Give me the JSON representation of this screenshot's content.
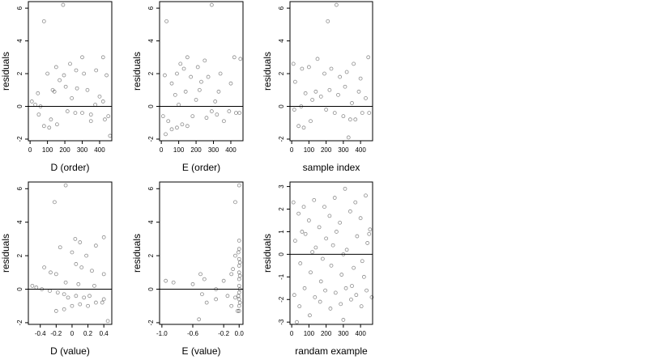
{
  "chart_data": [
    {
      "type": "scatter",
      "xlabel": "D (order)",
      "ylabel": "residuals",
      "xticks": [
        0,
        100,
        200,
        300,
        400
      ],
      "yticks": [
        -2,
        0,
        2,
        4,
        6
      ],
      "xlim": [
        -10,
        470
      ],
      "ylim": [
        -2.1,
        6.4
      ],
      "hline": 0,
      "grid": false,
      "points": [
        [
          80,
          5.2
        ],
        [
          190,
          6.2
        ],
        [
          300,
          3.0
        ],
        [
          420,
          3.0
        ],
        [
          230,
          2.6
        ],
        [
          150,
          2.4
        ],
        [
          265,
          2.2
        ],
        [
          100,
          2.0
        ],
        [
          195,
          1.9
        ],
        [
          310,
          2.0
        ],
        [
          380,
          2.2
        ],
        [
          440,
          1.9
        ],
        [
          45,
          0.8
        ],
        [
          50,
          -0.5
        ],
        [
          80,
          -1.2
        ],
        [
          110,
          -1.3
        ],
        [
          140,
          0.9
        ],
        [
          155,
          -1.1
        ],
        [
          205,
          1.2
        ],
        [
          215,
          -0.3
        ],
        [
          240,
          0.5
        ],
        [
          260,
          -0.4
        ],
        [
          300,
          -0.4
        ],
        [
          330,
          1.0
        ],
        [
          350,
          -0.5
        ],
        [
          375,
          0.1
        ],
        [
          400,
          0.6
        ],
        [
          420,
          0.3
        ],
        [
          430,
          -0.8
        ],
        [
          450,
          -0.6
        ],
        [
          460,
          -1.8
        ],
        [
          350,
          -0.9
        ],
        [
          130,
          1.0
        ],
        [
          170,
          1.6
        ],
        [
          270,
          1.1
        ],
        [
          120,
          -0.8
        ],
        [
          10,
          0.3
        ],
        [
          30,
          0.1
        ],
        [
          60,
          0.0
        ]
      ]
    },
    {
      "type": "scatter",
      "xlabel": "E (order)",
      "ylabel": "residuals",
      "xticks": [
        0,
        100,
        200,
        300,
        400
      ],
      "yticks": [
        -2,
        0,
        2,
        4,
        6
      ],
      "xlim": [
        -10,
        470
      ],
      "ylim": [
        -2.1,
        6.4
      ],
      "hline": 0,
      "grid": false,
      "points": [
        [
          30,
          5.2
        ],
        [
          290,
          6.2
        ],
        [
          110,
          2.6
        ],
        [
          150,
          3.0
        ],
        [
          210,
          2.4
        ],
        [
          250,
          2.8
        ],
        [
          20,
          1.9
        ],
        [
          60,
          1.4
        ],
        [
          90,
          2.0
        ],
        [
          130,
          2.3
        ],
        [
          170,
          1.8
        ],
        [
          230,
          1.5
        ],
        [
          270,
          1.8
        ],
        [
          340,
          2.0
        ],
        [
          420,
          3.0
        ],
        [
          455,
          2.9
        ],
        [
          10,
          -0.6
        ],
        [
          40,
          -0.9
        ],
        [
          60,
          -1.4
        ],
        [
          90,
          -1.3
        ],
        [
          120,
          -1.1
        ],
        [
          150,
          -1.2
        ],
        [
          180,
          -0.6
        ],
        [
          260,
          -0.7
        ],
        [
          290,
          -0.3
        ],
        [
          320,
          -0.5
        ],
        [
          360,
          -0.9
        ],
        [
          390,
          -0.3
        ],
        [
          430,
          -0.4
        ],
        [
          450,
          -0.4
        ],
        [
          80,
          0.7
        ],
        [
          140,
          0.9
        ],
        [
          200,
          0.4
        ],
        [
          330,
          0.9
        ],
        [
          400,
          1.4
        ],
        [
          310,
          0.3
        ],
        [
          25,
          -1.7
        ],
        [
          220,
          1.0
        ],
        [
          100,
          0.1
        ]
      ]
    },
    {
      "type": "scatter",
      "xlabel": "sample index",
      "ylabel": "residuals",
      "xticks": [
        0,
        100,
        200,
        300,
        400
      ],
      "yticks": [
        -2,
        0,
        2,
        4,
        6
      ],
      "xlim": [
        -10,
        470
      ],
      "ylim": [
        -2.1,
        6.4
      ],
      "hline": 0,
      "grid": false,
      "points": [
        [
          210,
          5.2
        ],
        [
          260,
          6.2
        ],
        [
          10,
          2.6
        ],
        [
          60,
          2.3
        ],
        [
          100,
          2.4
        ],
        [
          150,
          2.9
        ],
        [
          190,
          2.0
        ],
        [
          230,
          2.3
        ],
        [
          280,
          1.8
        ],
        [
          320,
          2.1
        ],
        [
          360,
          2.6
        ],
        [
          400,
          1.7
        ],
        [
          445,
          3.0
        ],
        [
          20,
          1.5
        ],
        [
          40,
          -1.2
        ],
        [
          70,
          -1.3
        ],
        [
          110,
          -0.9
        ],
        [
          140,
          0.9
        ],
        [
          170,
          0.6
        ],
        [
          200,
          -0.2
        ],
        [
          250,
          -0.4
        ],
        [
          300,
          -0.6
        ],
        [
          340,
          -0.8
        ],
        [
          370,
          -0.8
        ],
        [
          410,
          -0.4
        ],
        [
          450,
          -0.4
        ],
        [
          330,
          -1.9
        ],
        [
          80,
          0.8
        ],
        [
          120,
          0.4
        ],
        [
          220,
          1.0
        ],
        [
          270,
          0.7
        ],
        [
          310,
          1.2
        ],
        [
          350,
          0.2
        ],
        [
          390,
          0.9
        ],
        [
          430,
          0.5
        ],
        [
          15,
          -0.2
        ],
        [
          55,
          0.0
        ]
      ]
    },
    {
      "type": "scatter",
      "xlabel": "D (value)",
      "ylabel": "residuals",
      "xticks": [
        -0.4,
        -0.2,
        0.0,
        0.2,
        0.4
      ],
      "ytick_labels": [
        "-2",
        "0",
        "2",
        "4",
        "6"
      ],
      "yticks": [
        -2,
        0,
        2,
        4,
        6
      ],
      "xlim": [
        -0.55,
        0.5
      ],
      "ylim": [
        -2.1,
        6.4
      ],
      "hline": 0,
      "grid": false,
      "points": [
        [
          -0.22,
          5.2
        ],
        [
          -0.08,
          6.2
        ],
        [
          0.04,
          3.0
        ],
        [
          0.1,
          2.8
        ],
        [
          0.4,
          3.1
        ],
        [
          -0.15,
          2.5
        ],
        [
          0.0,
          2.2
        ],
        [
          0.18,
          2.0
        ],
        [
          0.3,
          2.6
        ],
        [
          -0.35,
          1.3
        ],
        [
          -0.27,
          1.0
        ],
        [
          -0.2,
          0.9
        ],
        [
          0.05,
          1.5
        ],
        [
          0.12,
          1.3
        ],
        [
          0.25,
          1.1
        ],
        [
          0.4,
          0.9
        ],
        [
          -0.5,
          0.2
        ],
        [
          -0.45,
          0.1
        ],
        [
          -0.38,
          0.0
        ],
        [
          -0.28,
          -0.1
        ],
        [
          -0.18,
          -0.2
        ],
        [
          -0.1,
          -0.3
        ],
        [
          -0.05,
          -0.5
        ],
        [
          0.05,
          -0.4
        ],
        [
          0.15,
          -0.5
        ],
        [
          0.22,
          -0.4
        ],
        [
          0.4,
          -0.6
        ],
        [
          0.38,
          -0.8
        ],
        [
          -0.2,
          -1.3
        ],
        [
          -0.1,
          -1.2
        ],
        [
          0.0,
          -1.0
        ],
        [
          0.1,
          -0.9
        ],
        [
          0.2,
          -1.0
        ],
        [
          0.3,
          -0.8
        ],
        [
          0.45,
          -1.9
        ],
        [
          -0.08,
          0.4
        ],
        [
          0.08,
          0.3
        ],
        [
          0.28,
          0.2
        ]
      ]
    },
    {
      "type": "scatter",
      "xlabel": "E (value)",
      "ylabel": "residuals",
      "xticks": [
        -1.0,
        -0.6,
        -0.2,
        0.0
      ],
      "xtick_labels": [
        "-1.0",
        "-0.6",
        "-0.2",
        "0.0"
      ],
      "yticks": [
        -2,
        0,
        2,
        4,
        6
      ],
      "xlim": [
        -1.03,
        0.05
      ],
      "ylim": [
        -2.1,
        6.4
      ],
      "hline": 0,
      "grid": false,
      "points": [
        [
          -0.05,
          5.2
        ],
        [
          0.0,
          6.2
        ],
        [
          -0.95,
          0.5
        ],
        [
          -0.85,
          0.4
        ],
        [
          -0.5,
          0.9
        ],
        [
          -0.45,
          0.6
        ],
        [
          -0.48,
          -0.3
        ],
        [
          -0.42,
          -0.8
        ],
        [
          -0.3,
          0.0
        ],
        [
          -0.3,
          -0.6
        ],
        [
          -0.2,
          0.5
        ],
        [
          -0.15,
          -0.4
        ],
        [
          -0.1,
          0.9
        ],
        [
          -0.1,
          -1.0
        ],
        [
          -0.08,
          1.2
        ],
        [
          -0.05,
          -0.5
        ],
        [
          -0.05,
          2.0
        ],
        [
          -0.02,
          -1.3
        ],
        [
          0.0,
          2.9
        ],
        [
          0.0,
          2.4
        ],
        [
          0.0,
          1.8
        ],
        [
          0.0,
          1.4
        ],
        [
          0.0,
          1.0
        ],
        [
          0.0,
          0.6
        ],
        [
          0.0,
          0.2
        ],
        [
          0.0,
          -0.2
        ],
        [
          0.0,
          -0.6
        ],
        [
          0.0,
          -1.0
        ],
        [
          0.0,
          -1.3
        ],
        [
          0.01,
          1.6
        ],
        [
          0.01,
          0.8
        ],
        [
          0.01,
          0.0
        ],
        [
          0.01,
          -0.8
        ],
        [
          -0.01,
          2.2
        ],
        [
          -0.01,
          -0.4
        ],
        [
          -0.52,
          -1.8
        ],
        [
          -0.6,
          0.3
        ]
      ]
    },
    {
      "type": "scatter",
      "xlabel": "randam example",
      "ylabel": "residuals",
      "xticks": [
        0,
        100,
        200,
        300,
        400
      ],
      "yticks": [
        -3,
        -2,
        -1,
        0,
        1,
        2,
        3
      ],
      "xlim": [
        -10,
        470
      ],
      "ylim": [
        -3.1,
        3.2
      ],
      "hline": 0,
      "grid": false,
      "points": [
        [
          10,
          2.3
        ],
        [
          40,
          1.8
        ],
        [
          70,
          2.1
        ],
        [
          100,
          1.5
        ],
        [
          130,
          2.4
        ],
        [
          160,
          1.2
        ],
        [
          190,
          2.1
        ],
        [
          220,
          1.7
        ],
        [
          250,
          2.5
        ],
        [
          280,
          1.4
        ],
        [
          310,
          2.9
        ],
        [
          340,
          1.9
        ],
        [
          370,
          2.3
        ],
        [
          400,
          1.6
        ],
        [
          430,
          2.6
        ],
        [
          455,
          1.1
        ],
        [
          20,
          0.6
        ],
        [
          50,
          -0.4
        ],
        [
          80,
          0.9
        ],
        [
          110,
          -0.8
        ],
        [
          140,
          0.3
        ],
        [
          170,
          -1.2
        ],
        [
          200,
          0.7
        ],
        [
          230,
          -0.5
        ],
        [
          260,
          1.0
        ],
        [
          290,
          -0.9
        ],
        [
          320,
          0.2
        ],
        [
          350,
          -1.4
        ],
        [
          380,
          0.8
        ],
        [
          410,
          -0.3
        ],
        [
          440,
          0.5
        ],
        [
          15,
          -1.8
        ],
        [
          45,
          -2.3
        ],
        [
          75,
          -1.5
        ],
        [
          105,
          -2.7
        ],
        [
          135,
          -1.9
        ],
        [
          165,
          -2.1
        ],
        [
          195,
          -1.6
        ],
        [
          225,
          -2.4
        ],
        [
          255,
          -1.7
        ],
        [
          285,
          -2.2
        ],
        [
          315,
          -1.5
        ],
        [
          345,
          -2.0
        ],
        [
          375,
          -1.8
        ],
        [
          405,
          -2.3
        ],
        [
          435,
          -1.6
        ],
        [
          465,
          -1.9
        ],
        [
          30,
          -3.0
        ],
        [
          300,
          -2.9
        ],
        [
          60,
          1.0
        ],
        [
          120,
          0.1
        ],
        [
          180,
          -0.2
        ],
        [
          240,
          0.4
        ],
        [
          300,
          0.0
        ],
        [
          360,
          -0.6
        ],
        [
          420,
          -1.0
        ],
        [
          450,
          0.9
        ]
      ]
    }
  ]
}
